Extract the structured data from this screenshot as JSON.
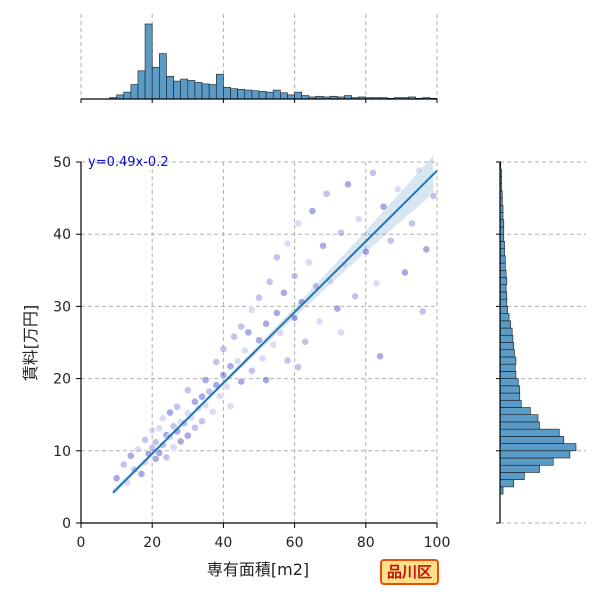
{
  "chart_data": {
    "type": "scatter",
    "xlabel": "専有面積[m2]",
    "ylabel": "賃料[万円]",
    "xlim": [
      0,
      100
    ],
    "ylim": [
      0,
      50
    ],
    "x_ticks": [
      "0",
      "20",
      "40",
      "60",
      "80",
      "100"
    ],
    "y_ticks": [
      "0",
      "10",
      "20",
      "30",
      "40",
      "50"
    ],
    "grid": true,
    "regression": {
      "label": "y=0.49x-0.2",
      "slope": 0.49,
      "intercept": -0.2,
      "x_range": [
        9,
        100
      ]
    },
    "scatter_colors": [
      "#4040c8",
      "#7a7ad8",
      "#b0b0e8"
    ],
    "line_color": "#1f77b4",
    "bar_color": "#5b9bc8",
    "points": [
      {
        "x": 10,
        "y": 6.2
      },
      {
        "x": 12,
        "y": 8.1
      },
      {
        "x": 13,
        "y": 5.6
      },
      {
        "x": 14,
        "y": 9.3
      },
      {
        "x": 15,
        "y": 7.4
      },
      {
        "x": 16,
        "y": 10.2
      },
      {
        "x": 17,
        "y": 6.8
      },
      {
        "x": 18,
        "y": 11.5
      },
      {
        "x": 18,
        "y": 8.4
      },
      {
        "x": 19,
        "y": 9.6
      },
      {
        "x": 20,
        "y": 10.4
      },
      {
        "x": 20,
        "y": 12.8
      },
      {
        "x": 21,
        "y": 8.9
      },
      {
        "x": 21,
        "y": 11.2
      },
      {
        "x": 22,
        "y": 13.1
      },
      {
        "x": 22,
        "y": 9.7
      },
      {
        "x": 23,
        "y": 10.8
      },
      {
        "x": 23,
        "y": 14.5
      },
      {
        "x": 24,
        "y": 12.2
      },
      {
        "x": 24,
        "y": 9.1
      },
      {
        "x": 25,
        "y": 11.9
      },
      {
        "x": 25,
        "y": 15.3
      },
      {
        "x": 26,
        "y": 13.4
      },
      {
        "x": 26,
        "y": 10.5
      },
      {
        "x": 27,
        "y": 12.7
      },
      {
        "x": 27,
        "y": 16.1
      },
      {
        "x": 28,
        "y": 14.0
      },
      {
        "x": 28,
        "y": 11.3
      },
      {
        "x": 29,
        "y": 13.8
      },
      {
        "x": 30,
        "y": 15.2
      },
      {
        "x": 30,
        "y": 12.1
      },
      {
        "x": 30,
        "y": 18.4
      },
      {
        "x": 31,
        "y": 14.6
      },
      {
        "x": 32,
        "y": 16.8
      },
      {
        "x": 32,
        "y": 13.2
      },
      {
        "x": 33,
        "y": 15.9
      },
      {
        "x": 34,
        "y": 17.5
      },
      {
        "x": 34,
        "y": 14.1
      },
      {
        "x": 35,
        "y": 16.3
      },
      {
        "x": 35,
        "y": 19.8
      },
      {
        "x": 36,
        "y": 18.2
      },
      {
        "x": 37,
        "y": 15.4
      },
      {
        "x": 38,
        "y": 19.1
      },
      {
        "x": 38,
        "y": 22.3
      },
      {
        "x": 39,
        "y": 17.6
      },
      {
        "x": 40,
        "y": 20.5
      },
      {
        "x": 40,
        "y": 24.1
      },
      {
        "x": 41,
        "y": 18.9
      },
      {
        "x": 42,
        "y": 21.7
      },
      {
        "x": 43,
        "y": 25.8
      },
      {
        "x": 44,
        "y": 22.4
      },
      {
        "x": 45,
        "y": 19.6
      },
      {
        "x": 45,
        "y": 27.2
      },
      {
        "x": 46,
        "y": 23.9
      },
      {
        "x": 47,
        "y": 26.4
      },
      {
        "x": 48,
        "y": 21.1
      },
      {
        "x": 48,
        "y": 29.5
      },
      {
        "x": 50,
        "y": 25.3
      },
      {
        "x": 50,
        "y": 31.2
      },
      {
        "x": 51,
        "y": 22.8
      },
      {
        "x": 52,
        "y": 27.6
      },
      {
        "x": 53,
        "y": 33.4
      },
      {
        "x": 54,
        "y": 24.7
      },
      {
        "x": 55,
        "y": 29.1
      },
      {
        "x": 55,
        "y": 36.8
      },
      {
        "x": 56,
        "y": 26.3
      },
      {
        "x": 57,
        "y": 31.9
      },
      {
        "x": 58,
        "y": 22.5
      },
      {
        "x": 58,
        "y": 38.7
      },
      {
        "x": 60,
        "y": 28.4
      },
      {
        "x": 60,
        "y": 34.2
      },
      {
        "x": 61,
        "y": 41.5
      },
      {
        "x": 62,
        "y": 30.6
      },
      {
        "x": 63,
        "y": 25.1
      },
      {
        "x": 64,
        "y": 36.1
      },
      {
        "x": 65,
        "y": 43.2
      },
      {
        "x": 66,
        "y": 32.8
      },
      {
        "x": 67,
        "y": 27.9
      },
      {
        "x": 68,
        "y": 38.4
      },
      {
        "x": 69,
        "y": 45.6
      },
      {
        "x": 70,
        "y": 33.5
      },
      {
        "x": 72,
        "y": 29.7
      },
      {
        "x": 73,
        "y": 40.2
      },
      {
        "x": 74,
        "y": 35.8
      },
      {
        "x": 75,
        "y": 46.9
      },
      {
        "x": 77,
        "y": 31.4
      },
      {
        "x": 78,
        "y": 42.1
      },
      {
        "x": 80,
        "y": 37.6
      },
      {
        "x": 82,
        "y": 48.5
      },
      {
        "x": 83,
        "y": 33.2
      },
      {
        "x": 85,
        "y": 43.8
      },
      {
        "x": 87,
        "y": 39.1
      },
      {
        "x": 89,
        "y": 46.2
      },
      {
        "x": 91,
        "y": 34.7
      },
      {
        "x": 93,
        "y": 41.5
      },
      {
        "x": 95,
        "y": 48.8
      },
      {
        "x": 97,
        "y": 37.9
      },
      {
        "x": 99,
        "y": 45.3
      },
      {
        "x": 42,
        "y": 16.2
      },
      {
        "x": 52,
        "y": 19.8
      },
      {
        "x": 61,
        "y": 21.6
      },
      {
        "x": 73,
        "y": 26.4
      },
      {
        "x": 84,
        "y": 23.1
      },
      {
        "x": 96,
        "y": 29.3
      }
    ],
    "x_hist": {
      "bin_width": 2,
      "bins": [
        {
          "start": 8,
          "count": 2
        },
        {
          "start": 10,
          "count": 6
        },
        {
          "start": 12,
          "count": 10
        },
        {
          "start": 14,
          "count": 21
        },
        {
          "start": 16,
          "count": 41
        },
        {
          "start": 18,
          "count": 109
        },
        {
          "start": 20,
          "count": 46
        },
        {
          "start": 22,
          "count": 66
        },
        {
          "start": 24,
          "count": 33
        },
        {
          "start": 26,
          "count": 26
        },
        {
          "start": 28,
          "count": 29
        },
        {
          "start": 30,
          "count": 27
        },
        {
          "start": 32,
          "count": 24
        },
        {
          "start": 34,
          "count": 22
        },
        {
          "start": 36,
          "count": 21
        },
        {
          "start": 38,
          "count": 36
        },
        {
          "start": 40,
          "count": 17
        },
        {
          "start": 42,
          "count": 15
        },
        {
          "start": 44,
          "count": 14
        },
        {
          "start": 46,
          "count": 13
        },
        {
          "start": 48,
          "count": 12
        },
        {
          "start": 50,
          "count": 11
        },
        {
          "start": 52,
          "count": 10
        },
        {
          "start": 54,
          "count": 13
        },
        {
          "start": 56,
          "count": 9
        },
        {
          "start": 58,
          "count": 6
        },
        {
          "start": 60,
          "count": 10
        },
        {
          "start": 62,
          "count": 5
        },
        {
          "start": 64,
          "count": 3
        },
        {
          "start": 66,
          "count": 4
        },
        {
          "start": 68,
          "count": 3
        },
        {
          "start": 70,
          "count": 4
        },
        {
          "start": 72,
          "count": 3
        },
        {
          "start": 74,
          "count": 5
        },
        {
          "start": 76,
          "count": 2
        },
        {
          "start": 78,
          "count": 3
        },
        {
          "start": 80,
          "count": 2
        },
        {
          "start": 82,
          "count": 2
        },
        {
          "start": 84,
          "count": 2
        },
        {
          "start": 86,
          "count": 1
        },
        {
          "start": 88,
          "count": 2
        },
        {
          "start": 90,
          "count": 2
        },
        {
          "start": 92,
          "count": 3
        },
        {
          "start": 94,
          "count": 1
        },
        {
          "start": 96,
          "count": 2
        },
        {
          "start": 98,
          "count": 1
        }
      ]
    },
    "y_hist": {
      "bin_width": 1,
      "bins": [
        {
          "start": 4,
          "count": 4
        },
        {
          "start": 5,
          "count": 18
        },
        {
          "start": 6,
          "count": 32
        },
        {
          "start": 7,
          "count": 52
        },
        {
          "start": 8,
          "count": 70
        },
        {
          "start": 9,
          "count": 92
        },
        {
          "start": 10,
          "count": 100
        },
        {
          "start": 11,
          "count": 84
        },
        {
          "start": 12,
          "count": 78
        },
        {
          "start": 13,
          "count": 52
        },
        {
          "start": 14,
          "count": 50
        },
        {
          "start": 15,
          "count": 40
        },
        {
          "start": 16,
          "count": 28
        },
        {
          "start": 17,
          "count": 26
        },
        {
          "start": 18,
          "count": 26
        },
        {
          "start": 19,
          "count": 24
        },
        {
          "start": 20,
          "count": 21
        },
        {
          "start": 21,
          "count": 20
        },
        {
          "start": 22,
          "count": 21
        },
        {
          "start": 23,
          "count": 19
        },
        {
          "start": 24,
          "count": 18
        },
        {
          "start": 25,
          "count": 17
        },
        {
          "start": 26,
          "count": 16
        },
        {
          "start": 27,
          "count": 14
        },
        {
          "start": 28,
          "count": 12
        },
        {
          "start": 29,
          "count": 10
        },
        {
          "start": 30,
          "count": 9
        },
        {
          "start": 31,
          "count": 9
        },
        {
          "start": 32,
          "count": 8
        },
        {
          "start": 33,
          "count": 9
        },
        {
          "start": 34,
          "count": 8
        },
        {
          "start": 35,
          "count": 7
        },
        {
          "start": 36,
          "count": 7
        },
        {
          "start": 37,
          "count": 6
        },
        {
          "start": 38,
          "count": 6
        },
        {
          "start": 39,
          "count": 5
        },
        {
          "start": 40,
          "count": 5
        },
        {
          "start": 41,
          "count": 5
        },
        {
          "start": 42,
          "count": 4
        },
        {
          "start": 43,
          "count": 4
        },
        {
          "start": 44,
          "count": 3
        },
        {
          "start": 45,
          "count": 3
        },
        {
          "start": 46,
          "count": 2
        },
        {
          "start": 47,
          "count": 2
        },
        {
          "start": 48,
          "count": 2
        },
        {
          "start": 49,
          "count": 1
        }
      ]
    }
  },
  "region_label": "品川区"
}
